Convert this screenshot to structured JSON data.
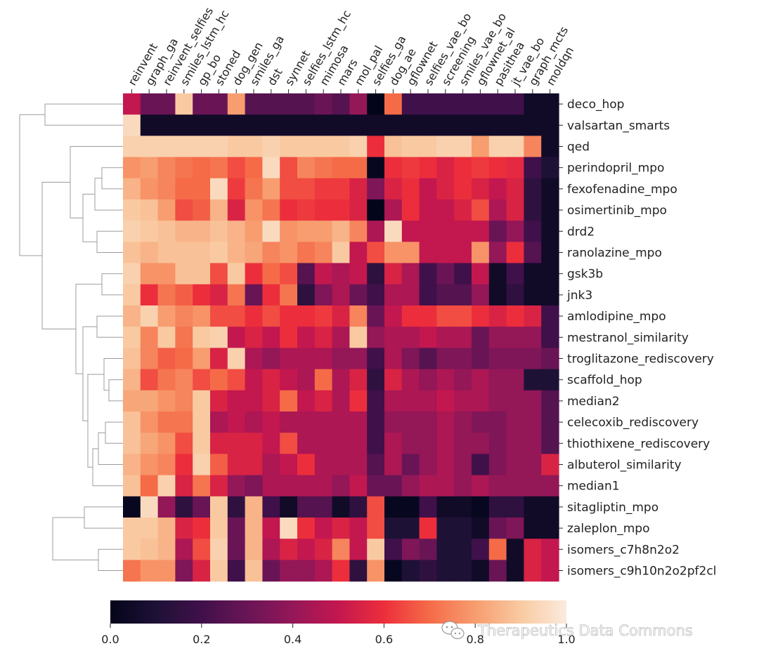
{
  "chart_data": {
    "type": "heatmap",
    "title": "",
    "columns": [
      "reinvent",
      "graph_ga",
      "reinvent_selfies",
      "smiles_lstm_hc",
      "gp_bo",
      "stoned",
      "dog_gen",
      "smiles_ga",
      "dst",
      "synnet",
      "selfies_lstm_hc",
      "mimosa",
      "mars",
      "mol_pal",
      "selfies_ga",
      "dog_ae",
      "gflownet",
      "selfies_vae_bo",
      "screening",
      "smiles_vae_bo",
      "gflownet_al",
      "pasithea",
      "jt_vae_bo",
      "graph_mcts",
      "moldqn"
    ],
    "rows": [
      "deco_hop",
      "valsartan_smarts",
      "qed",
      "perindopril_mpo",
      "fexofenadine_mpo",
      "osimertinib_mpo",
      "drd2",
      "ranolazine_mpo",
      "gsk3b",
      "jnk3",
      "amlodipine_mpo",
      "mestranol_similarity",
      "troglitazone_rediscovery",
      "scaffold_hop",
      "median2",
      "celecoxib_rediscovery",
      "thiothixene_rediscovery",
      "albuterol_similarity",
      "median1",
      "sitagliptin_mpo",
      "zaleplon_mpo",
      "isomers_c7h8n2o2",
      "isomers_c9h10n2o2pf2cl"
    ],
    "values": [
      [
        0.5,
        0.3,
        0.3,
        0.9,
        0.3,
        0.3,
        0.8,
        0.25,
        0.25,
        0.25,
        0.25,
        0.3,
        0.25,
        0.4,
        0.0,
        0.7,
        0.2,
        0.2,
        0.2,
        0.2,
        0.2,
        0.2,
        0.2,
        0.05,
        0.05
      ],
      [
        0.95,
        0.05,
        0.05,
        0.05,
        0.05,
        0.05,
        0.05,
        0.05,
        0.05,
        0.05,
        0.05,
        0.05,
        0.05,
        0.05,
        0.05,
        0.05,
        0.05,
        0.05,
        0.05,
        0.05,
        0.05,
        0.05,
        0.05,
        0.05,
        0.05
      ],
      [
        0.92,
        0.92,
        0.92,
        0.92,
        0.92,
        0.92,
        0.9,
        0.9,
        0.92,
        0.9,
        0.9,
        0.9,
        0.9,
        0.92,
        0.6,
        0.88,
        0.9,
        0.9,
        0.92,
        0.92,
        0.8,
        0.92,
        0.92,
        0.75,
        0.05
      ],
      [
        0.78,
        0.8,
        0.75,
        0.72,
        0.7,
        0.72,
        0.65,
        0.7,
        0.95,
        0.65,
        0.75,
        0.72,
        0.7,
        0.7,
        0.02,
        0.6,
        0.62,
        0.6,
        0.55,
        0.6,
        0.62,
        0.6,
        0.58,
        0.2,
        0.1
      ],
      [
        0.85,
        0.78,
        0.75,
        0.7,
        0.7,
        0.95,
        0.62,
        0.72,
        0.8,
        0.65,
        0.65,
        0.62,
        0.62,
        0.55,
        0.35,
        0.55,
        0.6,
        0.5,
        0.55,
        0.6,
        0.55,
        0.5,
        0.55,
        0.15,
        0.05
      ],
      [
        0.9,
        0.88,
        0.8,
        0.65,
        0.68,
        0.85,
        0.55,
        0.78,
        0.72,
        0.6,
        0.62,
        0.6,
        0.6,
        0.55,
        0.0,
        0.45,
        0.6,
        0.5,
        0.5,
        0.55,
        0.65,
        0.45,
        0.55,
        0.15,
        0.05
      ],
      [
        0.92,
        0.9,
        0.88,
        0.85,
        0.85,
        0.88,
        0.85,
        0.8,
        0.95,
        0.78,
        0.8,
        0.8,
        0.85,
        0.75,
        0.45,
        0.95,
        0.5,
        0.5,
        0.5,
        0.5,
        0.5,
        0.3,
        0.4,
        0.2,
        0.05
      ],
      [
        0.88,
        0.85,
        0.88,
        0.88,
        0.88,
        0.9,
        0.85,
        0.82,
        0.75,
        0.78,
        0.72,
        0.75,
        0.9,
        0.5,
        0.65,
        0.78,
        0.78,
        0.5,
        0.5,
        0.5,
        0.78,
        0.4,
        0.6,
        0.25,
        0.05
      ],
      [
        0.92,
        0.78,
        0.78,
        0.88,
        0.88,
        0.65,
        0.9,
        0.6,
        0.7,
        0.65,
        0.25,
        0.5,
        0.45,
        0.5,
        0.15,
        0.55,
        0.45,
        0.2,
        0.3,
        0.2,
        0.5,
        0.05,
        0.2,
        0.05,
        0.05
      ],
      [
        0.9,
        0.6,
        0.72,
        0.68,
        0.6,
        0.55,
        0.72,
        0.3,
        0.6,
        0.72,
        0.15,
        0.35,
        0.45,
        0.3,
        0.2,
        0.45,
        0.45,
        0.2,
        0.25,
        0.25,
        0.4,
        0.05,
        0.15,
        0.05,
        0.05
      ],
      [
        0.85,
        0.92,
        0.8,
        0.75,
        0.78,
        0.65,
        0.65,
        0.6,
        0.65,
        0.6,
        0.6,
        0.62,
        0.55,
        0.75,
        0.3,
        0.5,
        0.6,
        0.6,
        0.65,
        0.65,
        0.6,
        0.55,
        0.6,
        0.55,
        0.2
      ],
      [
        0.9,
        0.75,
        0.9,
        0.72,
        0.9,
        0.92,
        0.5,
        0.55,
        0.5,
        0.6,
        0.5,
        0.55,
        0.45,
        0.9,
        0.4,
        0.45,
        0.45,
        0.5,
        0.45,
        0.45,
        0.3,
        0.4,
        0.4,
        0.4,
        0.2
      ],
      [
        0.88,
        0.75,
        0.68,
        0.7,
        0.8,
        0.55,
        0.92,
        0.45,
        0.4,
        0.45,
        0.45,
        0.45,
        0.4,
        0.4,
        0.2,
        0.45,
        0.35,
        0.25,
        0.35,
        0.35,
        0.3,
        0.35,
        0.35,
        0.35,
        0.3
      ],
      [
        0.85,
        0.65,
        0.72,
        0.75,
        0.65,
        0.7,
        0.65,
        0.5,
        0.55,
        0.5,
        0.45,
        0.7,
        0.45,
        0.55,
        0.15,
        0.55,
        0.45,
        0.4,
        0.45,
        0.4,
        0.45,
        0.4,
        0.4,
        0.1,
        0.1
      ],
      [
        0.82,
        0.82,
        0.78,
        0.75,
        0.9,
        0.55,
        0.5,
        0.5,
        0.55,
        0.7,
        0.5,
        0.55,
        0.45,
        0.6,
        0.2,
        0.45,
        0.45,
        0.45,
        0.5,
        0.45,
        0.45,
        0.4,
        0.4,
        0.4,
        0.25
      ],
      [
        0.88,
        0.78,
        0.72,
        0.72,
        0.9,
        0.45,
        0.5,
        0.45,
        0.5,
        0.45,
        0.45,
        0.45,
        0.45,
        0.45,
        0.2,
        0.4,
        0.4,
        0.4,
        0.45,
        0.4,
        0.35,
        0.35,
        0.4,
        0.4,
        0.25
      ],
      [
        0.88,
        0.82,
        0.78,
        0.65,
        0.9,
        0.55,
        0.55,
        0.55,
        0.5,
        0.65,
        0.45,
        0.45,
        0.45,
        0.45,
        0.2,
        0.45,
        0.4,
        0.4,
        0.45,
        0.4,
        0.4,
        0.35,
        0.4,
        0.4,
        0.25
      ],
      [
        0.85,
        0.78,
        0.75,
        0.6,
        0.92,
        0.68,
        0.55,
        0.55,
        0.45,
        0.5,
        0.6,
        0.45,
        0.45,
        0.45,
        0.25,
        0.45,
        0.3,
        0.4,
        0.45,
        0.4,
        0.2,
        0.35,
        0.4,
        0.4,
        0.55
      ],
      [
        0.88,
        0.7,
        0.92,
        0.55,
        0.72,
        0.55,
        0.4,
        0.35,
        0.45,
        0.45,
        0.45,
        0.45,
        0.4,
        0.5,
        0.3,
        0.3,
        0.4,
        0.45,
        0.45,
        0.4,
        0.45,
        0.4,
        0.4,
        0.4,
        0.4
      ],
      [
        0.02,
        0.95,
        0.4,
        0.15,
        0.3,
        0.9,
        0.15,
        0.85,
        0.2,
        0.05,
        0.25,
        0.25,
        0.05,
        0.15,
        0.65,
        0.02,
        0.02,
        0.2,
        0.05,
        0.05,
        0.02,
        0.15,
        0.15,
        0.05,
        0.05
      ],
      [
        0.9,
        0.9,
        0.85,
        0.55,
        0.6,
        0.9,
        0.3,
        0.85,
        0.5,
        0.95,
        0.6,
        0.5,
        0.55,
        0.5,
        0.65,
        0.1,
        0.1,
        0.6,
        0.1,
        0.1,
        0.05,
        0.3,
        0.35,
        0.05,
        0.05
      ],
      [
        0.9,
        0.88,
        0.85,
        0.45,
        0.65,
        0.92,
        0.3,
        0.85,
        0.45,
        0.55,
        0.5,
        0.55,
        0.75,
        0.5,
        0.9,
        0.2,
        0.35,
        0.3,
        0.1,
        0.1,
        0.2,
        0.7,
        0.05,
        0.55,
        0.5
      ],
      [
        0.72,
        0.78,
        0.78,
        0.35,
        0.55,
        0.9,
        0.2,
        0.88,
        0.3,
        0.4,
        0.4,
        0.45,
        0.6,
        0.15,
        0.78,
        0.02,
        0.1,
        0.15,
        0.1,
        0.1,
        0.05,
        0.3,
        0.05,
        0.55,
        0.5
      ]
    ],
    "colormap": "rocket",
    "colorbar": {
      "range": [
        0.0,
        1.0
      ],
      "ticks": [
        0.0,
        0.2,
        0.4,
        0.6,
        0.8,
        1.0
      ],
      "tick_labels": [
        "0.0",
        "0.2",
        "0.4",
        "0.6",
        "0.8",
        "1.0"
      ],
      "placement": "bottom"
    },
    "row_dendrogram": "left",
    "watermark": "Therapeutics Data Commons"
  }
}
